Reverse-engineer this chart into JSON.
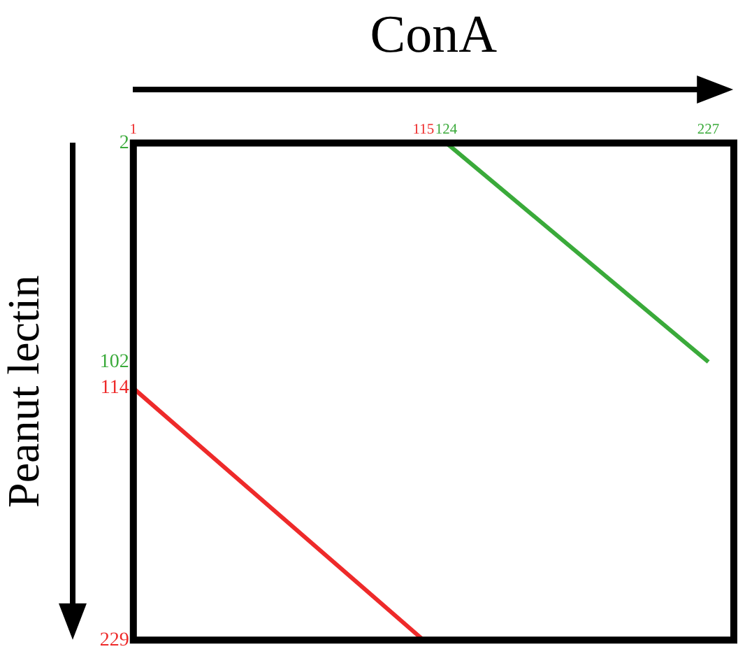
{
  "chart_data": {
    "type": "line",
    "xlabel": "ConA",
    "ylabel": "Peanut lectin",
    "xlim": [
      1,
      237
    ],
    "ylim": [
      229,
      2
    ],
    "xticks": [
      1,
      115,
      124,
      227
    ],
    "yticks": [
      2,
      102,
      114,
      229
    ],
    "grid": false,
    "legend": false,
    "marker": "none",
    "line_style": "solid",
    "series": [
      {
        "color": "#ee2a2a",
        "x": [
          1,
          115
        ],
        "values": [
          114,
          229
        ]
      },
      {
        "color": "#3aaa3a",
        "x": [
          124,
          227
        ],
        "values": [
          2,
          102
        ]
      }
    ]
  }
}
